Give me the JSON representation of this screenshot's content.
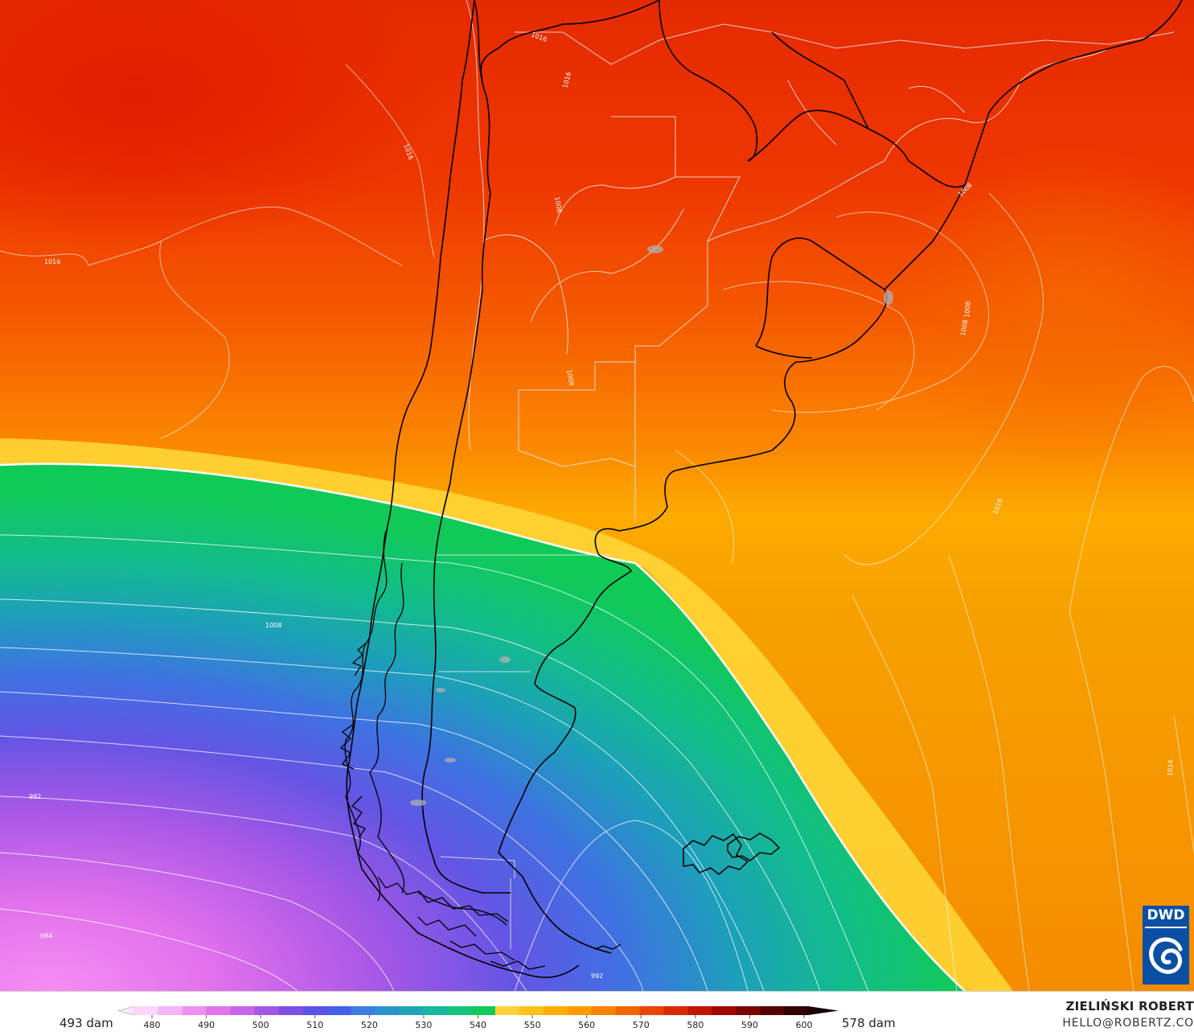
{
  "map": {
    "layers": [
      "500 hPa geopotential (shaded)",
      "sea level pressure isobars (white)"
    ],
    "isobar_labels": [
      "1016",
      "1016",
      "1016",
      "1016",
      "1008",
      "1008",
      "1008",
      "1008",
      "1008",
      "1008",
      "1016",
      "1024",
      "992",
      "992",
      "984"
    ],
    "colors": {
      "magenta": "#ee82ee",
      "purple": "#8a4fe6",
      "blue": "#4466e8",
      "teal": "#14a8b4",
      "green": "#12c85a",
      "yellow": "#ffd23a",
      "amber": "#ffb000",
      "orange": "#f98a00",
      "red": "#ee3000",
      "coast": "#000000",
      "isobar": "#ffffff",
      "border": "#e8e8e8"
    }
  },
  "legend": {
    "min_label": "493 dam",
    "max_label": "578 dam",
    "ticks": [
      "480",
      "490",
      "500",
      "510",
      "520",
      "530",
      "540",
      "550",
      "560",
      "570",
      "580",
      "590",
      "600"
    ]
  },
  "credit": {
    "name": "ZIELIŃSKI ROBERT",
    "email": "HELLO@ROBERTZ.CO"
  },
  "logo": {
    "text": "DWD"
  }
}
